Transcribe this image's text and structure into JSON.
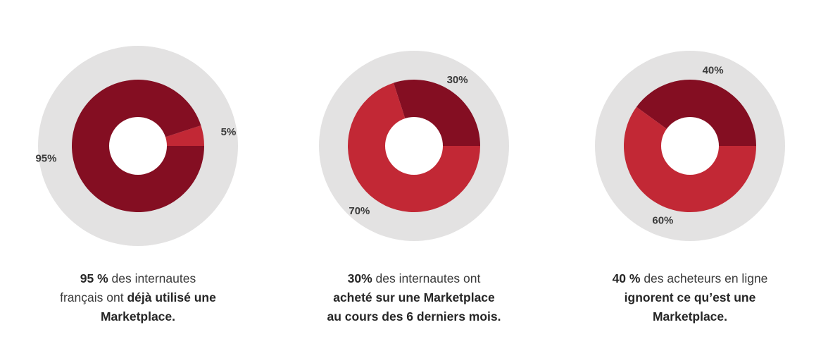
{
  "chart_data": [
    {
      "type": "pie",
      "categories": [
        "5%",
        "95%"
      ],
      "values": [
        5,
        95
      ],
      "colors": [
        "#c22835",
        "#840e22"
      ],
      "background_ring_color": "#e3e2e2",
      "caption": {
        "line1_bold": "95 %",
        "line1_rest": " des internautes",
        "line2_plain": "français ont ",
        "line2_bold": "déjà utilisé une",
        "line3_bold": "Marketplace."
      }
    },
    {
      "type": "pie",
      "categories": [
        "30%",
        "70%"
      ],
      "values": [
        30,
        70
      ],
      "colors": [
        "#840e22",
        "#c22835"
      ],
      "background_ring_color": "#e3e2e2",
      "caption": {
        "line1_bold": "30%",
        "line1_rest": " des internautes ont",
        "line2_plain": "",
        "line2_bold": "acheté sur une Marketplace",
        "line3_bold": "au cours des 6 derniers mois."
      }
    },
    {
      "type": "pie",
      "categories": [
        "40%",
        "60%"
      ],
      "values": [
        40,
        60
      ],
      "colors": [
        "#840e22",
        "#c22835"
      ],
      "background_ring_color": "#e3e2e2",
      "caption": {
        "line1_bold": "40 %",
        "line1_rest": " des acheteurs en ligne",
        "line2_plain": "",
        "line2_bold": "ignorent ce qu’est une",
        "line3_bold": "Marketplace."
      }
    }
  ]
}
